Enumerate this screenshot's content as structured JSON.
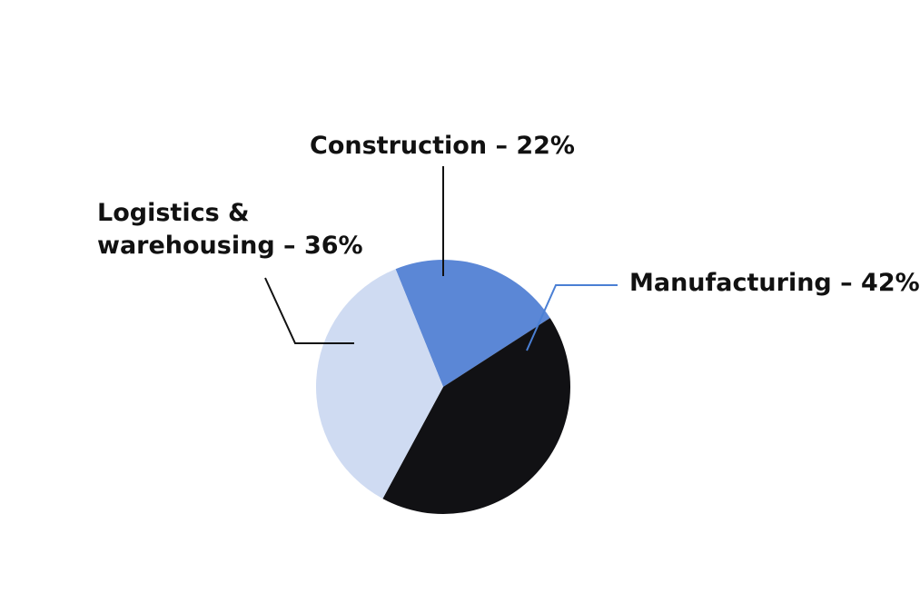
{
  "chart_data": {
    "type": "pie",
    "title": "",
    "slices": [
      {
        "name": "Manufacturing",
        "value": 42,
        "label_lines": [
          "Manufacturing – 42%"
        ],
        "color": "#111114",
        "leader_color": "#4a7fd4"
      },
      {
        "name": "Logistics & warehousing",
        "value": 36,
        "label_lines": [
          "Logistics &",
          "warehousing – 36%"
        ],
        "color": "#cfdbf2",
        "leader_color": "#111111"
      },
      {
        "name": "Construction",
        "value": 22,
        "label_lines": [
          "Construction – 22%"
        ],
        "color": "#5b87d6",
        "leader_color": "#111111"
      }
    ]
  }
}
